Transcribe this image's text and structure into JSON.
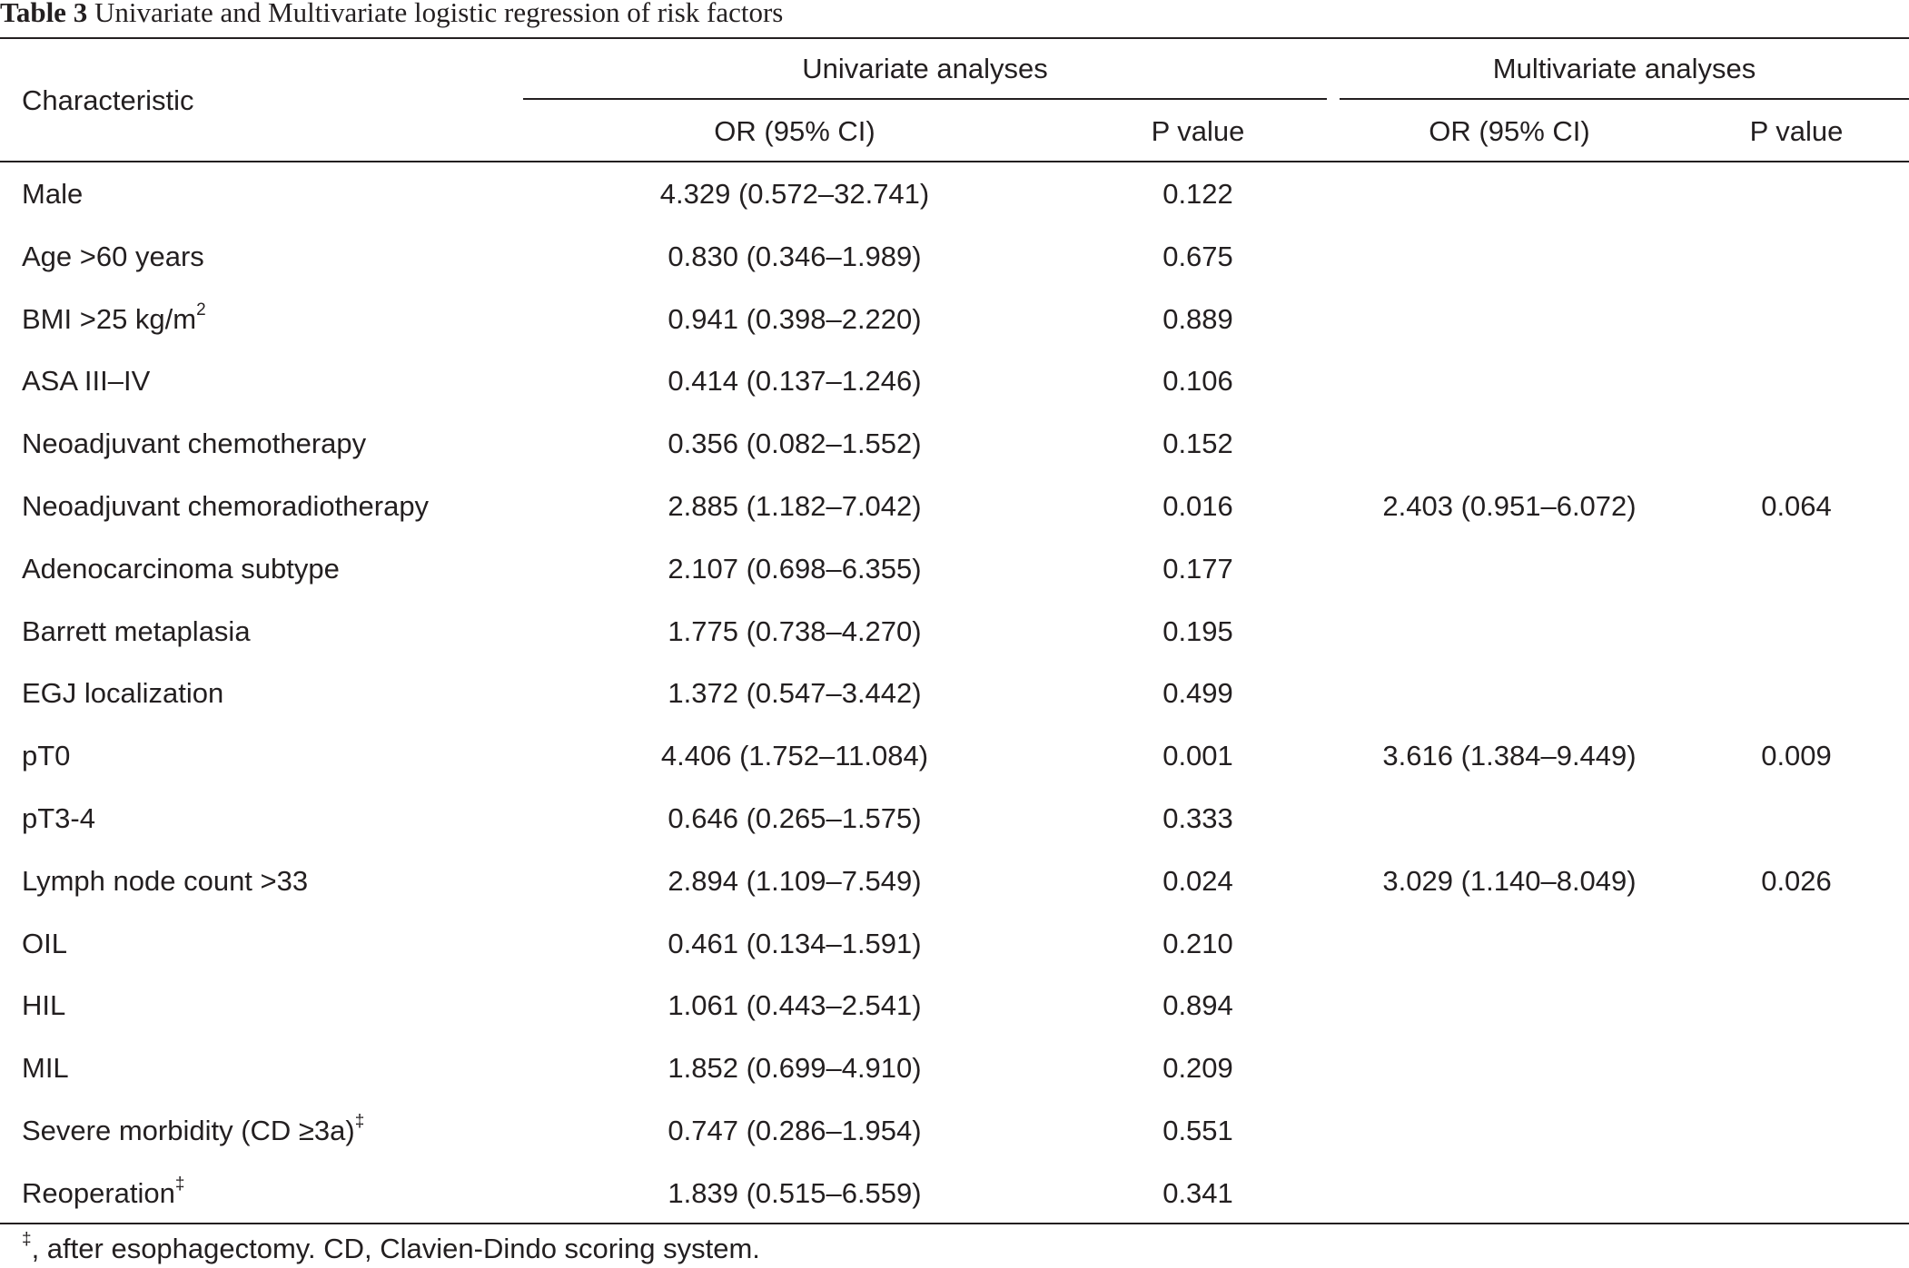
{
  "caption": {
    "label": "Table 3",
    "text": "Univariate and Multivariate logistic regression of risk factors"
  },
  "headers": {
    "characteristic": "Characteristic",
    "univariate": "Univariate analyses",
    "multivariate": "Multivariate analyses",
    "uni_or": "OR (95% CI)",
    "uni_p": "P value",
    "multi_or": "OR (95% CI)",
    "multi_p": "P value"
  },
  "rows": [
    {
      "characteristic": "Male",
      "sup": "",
      "uni_or": "4.329 (0.572–32.741)",
      "uni_p": "0.122",
      "multi_or": "",
      "multi_p": ""
    },
    {
      "characteristic": "Age >60 years",
      "sup": "",
      "uni_or": "0.830 (0.346–1.989)",
      "uni_p": "0.675",
      "multi_or": "",
      "multi_p": ""
    },
    {
      "characteristic": "BMI >25 kg/m",
      "sup": "2",
      "uni_or": "0.941 (0.398–2.220)",
      "uni_p": "0.889",
      "multi_or": "",
      "multi_p": ""
    },
    {
      "characteristic": "ASA III–IV",
      "sup": "",
      "uni_or": "0.414 (0.137–1.246)",
      "uni_p": "0.106",
      "multi_or": "",
      "multi_p": ""
    },
    {
      "characteristic": "Neoadjuvant chemotherapy",
      "sup": "",
      "uni_or": "0.356 (0.082–1.552)",
      "uni_p": "0.152",
      "multi_or": "",
      "multi_p": ""
    },
    {
      "characteristic": "Neoadjuvant chemoradiotherapy",
      "sup": "",
      "uni_or": "2.885 (1.182–7.042)",
      "uni_p": "0.016",
      "multi_or": "2.403 (0.951–6.072)",
      "multi_p": "0.064"
    },
    {
      "characteristic": "Adenocarcinoma subtype",
      "sup": "",
      "uni_or": "2.107 (0.698–6.355)",
      "uni_p": "0.177",
      "multi_or": "",
      "multi_p": ""
    },
    {
      "characteristic": "Barrett metaplasia",
      "sup": "",
      "uni_or": "1.775 (0.738–4.270)",
      "uni_p": "0.195",
      "multi_or": "",
      "multi_p": ""
    },
    {
      "characteristic": "EGJ localization",
      "sup": "",
      "uni_or": "1.372 (0.547–3.442)",
      "uni_p": "0.499",
      "multi_or": "",
      "multi_p": ""
    },
    {
      "characteristic": "pT0",
      "sup": "",
      "uni_or": "4.406 (1.752–11.084)",
      "uni_p": "0.001",
      "multi_or": "3.616 (1.384–9.449)",
      "multi_p": "0.009"
    },
    {
      "characteristic": "pT3-4",
      "sup": "",
      "uni_or": "0.646 (0.265–1.575)",
      "uni_p": "0.333",
      "multi_or": "",
      "multi_p": ""
    },
    {
      "characteristic": "Lymph node count >33",
      "sup": "",
      "uni_or": "2.894 (1.109–7.549)",
      "uni_p": "0.024",
      "multi_or": "3.029 (1.140–8.049)",
      "multi_p": "0.026"
    },
    {
      "characteristic": "OIL",
      "sup": "",
      "uni_or": "0.461 (0.134–1.591)",
      "uni_p": "0.210",
      "multi_or": "",
      "multi_p": ""
    },
    {
      "characteristic": "HIL",
      "sup": "",
      "uni_or": "1.061 (0.443–2.541)",
      "uni_p": "0.894",
      "multi_or": "",
      "multi_p": ""
    },
    {
      "characteristic": "MIL",
      "sup": "",
      "uni_or": "1.852 (0.699–4.910)",
      "uni_p": "0.209",
      "multi_or": "",
      "multi_p": ""
    },
    {
      "characteristic": "Severe morbidity (CD ≥3a)",
      "sup": "‡",
      "uni_or": "0.747 (0.286–1.954)",
      "uni_p": "0.551",
      "multi_or": "",
      "multi_p": ""
    },
    {
      "characteristic": "Reoperation",
      "sup": "‡",
      "uni_or": "1.839 (0.515–6.559)",
      "uni_p": "0.341",
      "multi_or": "",
      "multi_p": ""
    }
  ],
  "footnote": {
    "symbol": "‡",
    "text": ", after esophagectomy. CD, Clavien-Dindo scoring system."
  }
}
